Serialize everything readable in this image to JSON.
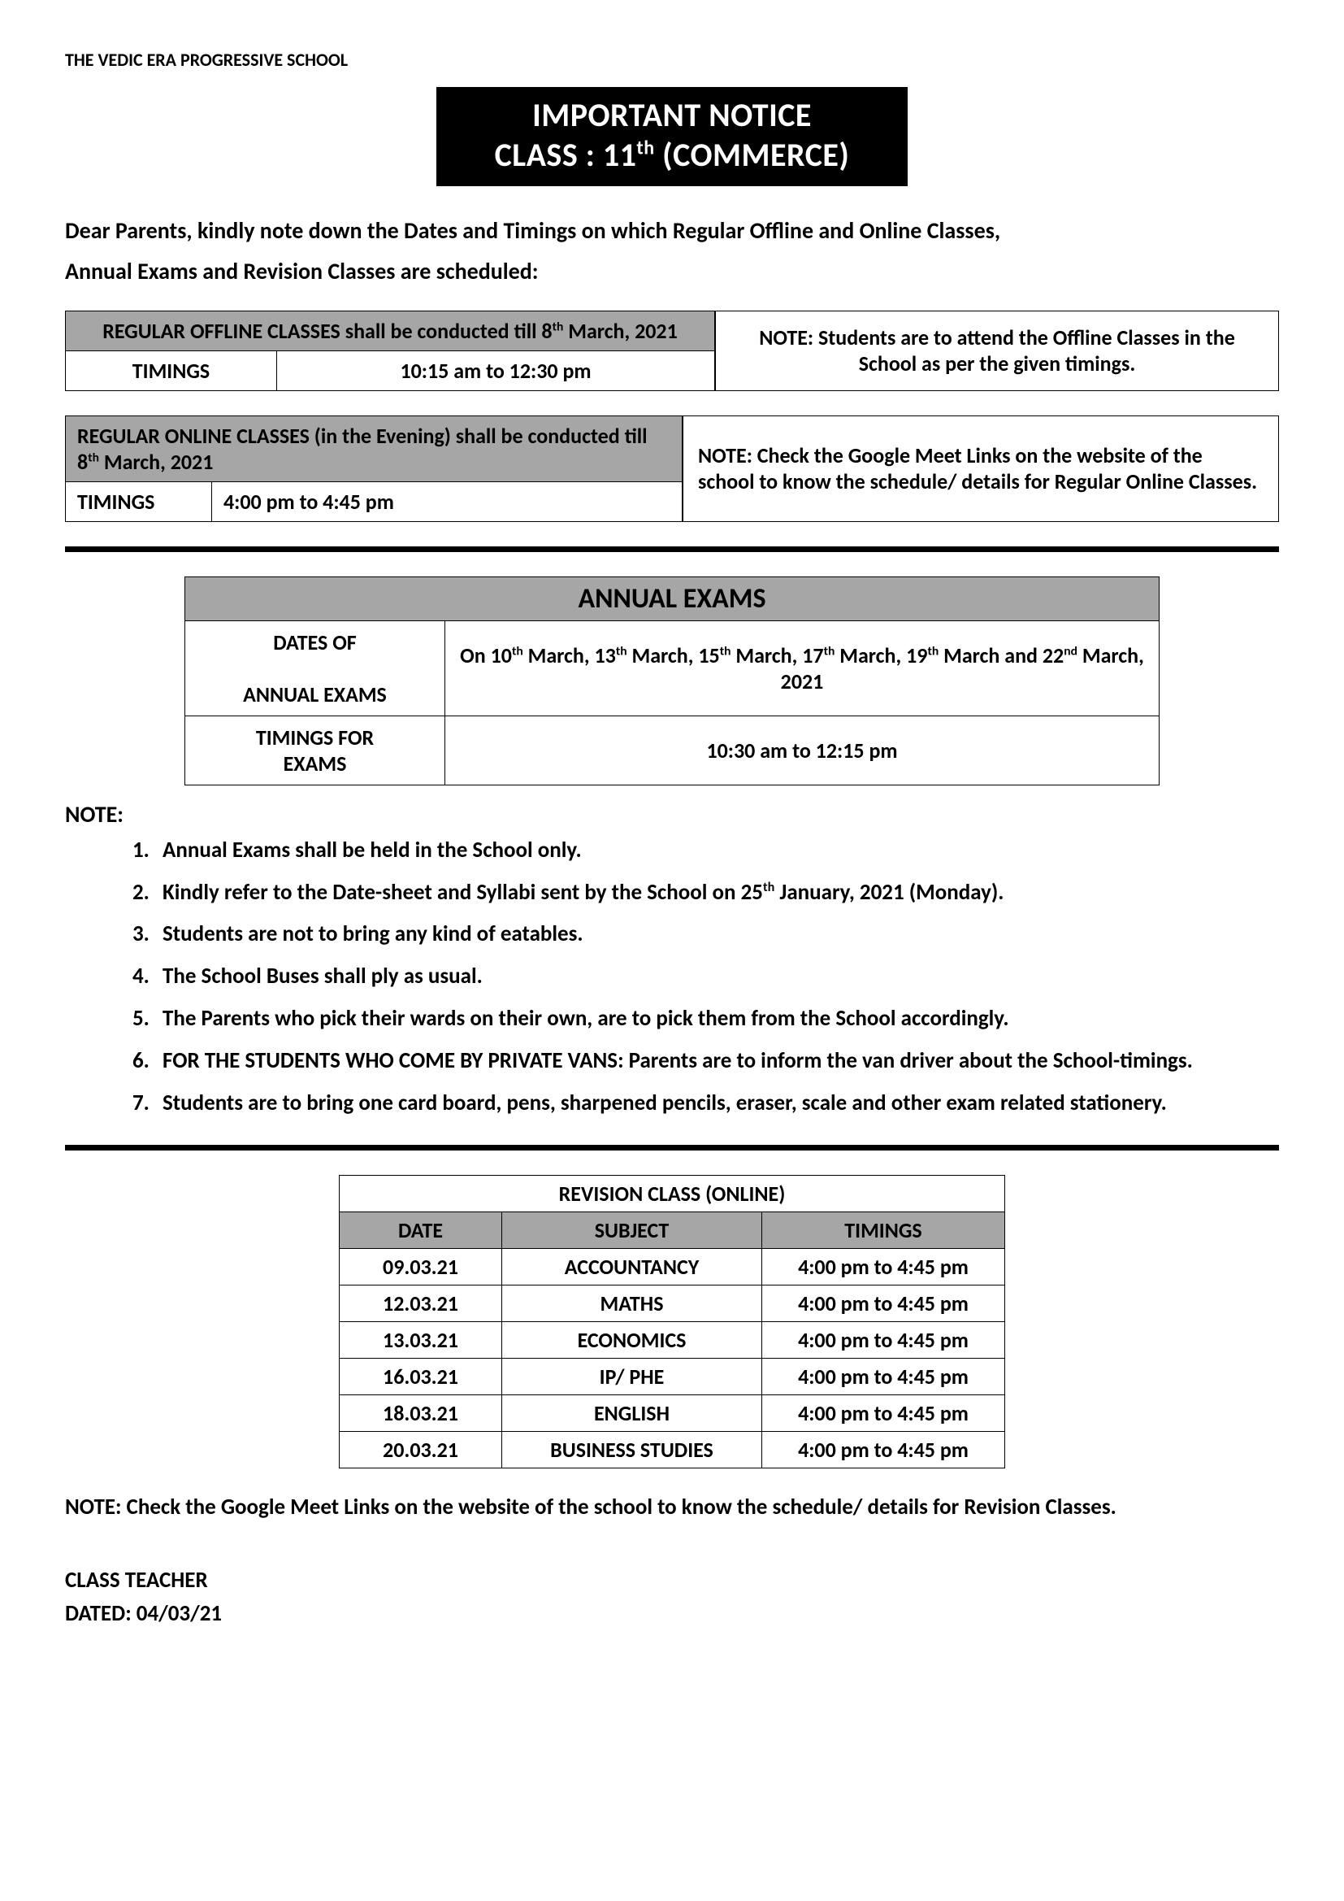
{
  "header": {
    "school_name": "THE VEDIC ERA PROGRESSIVE SCHOOL"
  },
  "title": {
    "line1": "IMPORTANT NOTICE",
    "line2_prefix": "CLASS : 11",
    "line2_sup": "th",
    "line2_suffix": " (COMMERCE)"
  },
  "intro": {
    "line1": "Dear Parents, kindly note down the Dates and Timings on which Regular Offline and Online Classes,",
    "line2": "Annual Exams and Revision Classes are scheduled:"
  },
  "offline": {
    "heading_prefix": "REGULAR OFFLINE CLASSES shall be conducted till 8",
    "heading_sup": "th",
    "heading_suffix": " March, 2021",
    "timings_label": "TIMINGS",
    "timings_value": "10:15 am to 12:30 pm",
    "note": "NOTE: Students are to attend the Offline Classes in the School as per the given timings."
  },
  "online": {
    "heading_prefix": "REGULAR ONLINE CLASSES (in the Evening) shall be conducted till 8",
    "heading_sup": "th",
    "heading_suffix": " March, 2021",
    "timings_label": "TIMINGS",
    "timings_value": "4:00 pm to 4:45 pm",
    "note": "NOTE: Check the Google Meet Links on the website of the school to know the schedule/ details for Regular Online Classes."
  },
  "annual": {
    "title": "ANNUAL EXAMS",
    "dates_label": "DATES OF ANNUAL EXAMS",
    "dates_html": "On 10<sup class='sup'>th</sup> March, 13<sup class='sup'>th</sup> March, 15<sup class='sup'>th</sup> March, 17<sup class='sup'>th</sup> March,  19<sup class='sup'>th</sup> March and 22<sup class='sup'>nd</sup> March, 2021",
    "timings_label": "TIMINGS FOR EXAMS",
    "timings_value": "10:30 am to 12:15 pm"
  },
  "notes": {
    "label": "NOTE:",
    "items": [
      "Annual Exams shall be held in the School only.",
      "Kindly refer to the Date-sheet and Syllabi sent by the School on 25<sup class='sup'>th</sup> January, 2021 (Monday).",
      "Students are not to bring any kind of eatables.",
      "The School Buses shall ply as usual.",
      "The Parents who pick their wards on their own, are to pick them from the School accordingly.",
      "FOR THE STUDENTS WHO COME BY PRIVATE VANS: Parents are to inform the van driver about the School-timings.",
      "Students are to bring one card board, pens, sharpened pencils, eraser, scale and other exam related stationery."
    ]
  },
  "revision": {
    "title": "REVISION CLASS (ONLINE)",
    "columns": [
      "DATE",
      "SUBJECT",
      "TIMINGS"
    ],
    "rows": [
      [
        "09.03.21",
        "ACCOUNTANCY",
        "4:00 pm to 4:45 pm"
      ],
      [
        "12.03.21",
        "MATHS",
        "4:00 pm to 4:45 pm"
      ],
      [
        "13.03.21",
        "ECONOMICS",
        "4:00 pm to 4:45 pm"
      ],
      [
        "16.03.21",
        "IP/ PHE",
        "4:00 pm to 4:45 pm"
      ],
      [
        "18.03.21",
        "ENGLISH",
        "4:00 pm to 4:45 pm"
      ],
      [
        "20.03.21",
        "BUSINESS STUDIES",
        "4:00 pm to 4:45 pm"
      ]
    ]
  },
  "bottom_note": "NOTE: Check the Google Meet Links on the website of the school to know the schedule/ details for Revision Classes.",
  "signoff": {
    "line1": "CLASS TEACHER",
    "line2": "DATED: 04/03/21"
  },
  "colors": {
    "gray_fill": "#a6a6a6",
    "black": "#000000",
    "white": "#ffffff"
  }
}
